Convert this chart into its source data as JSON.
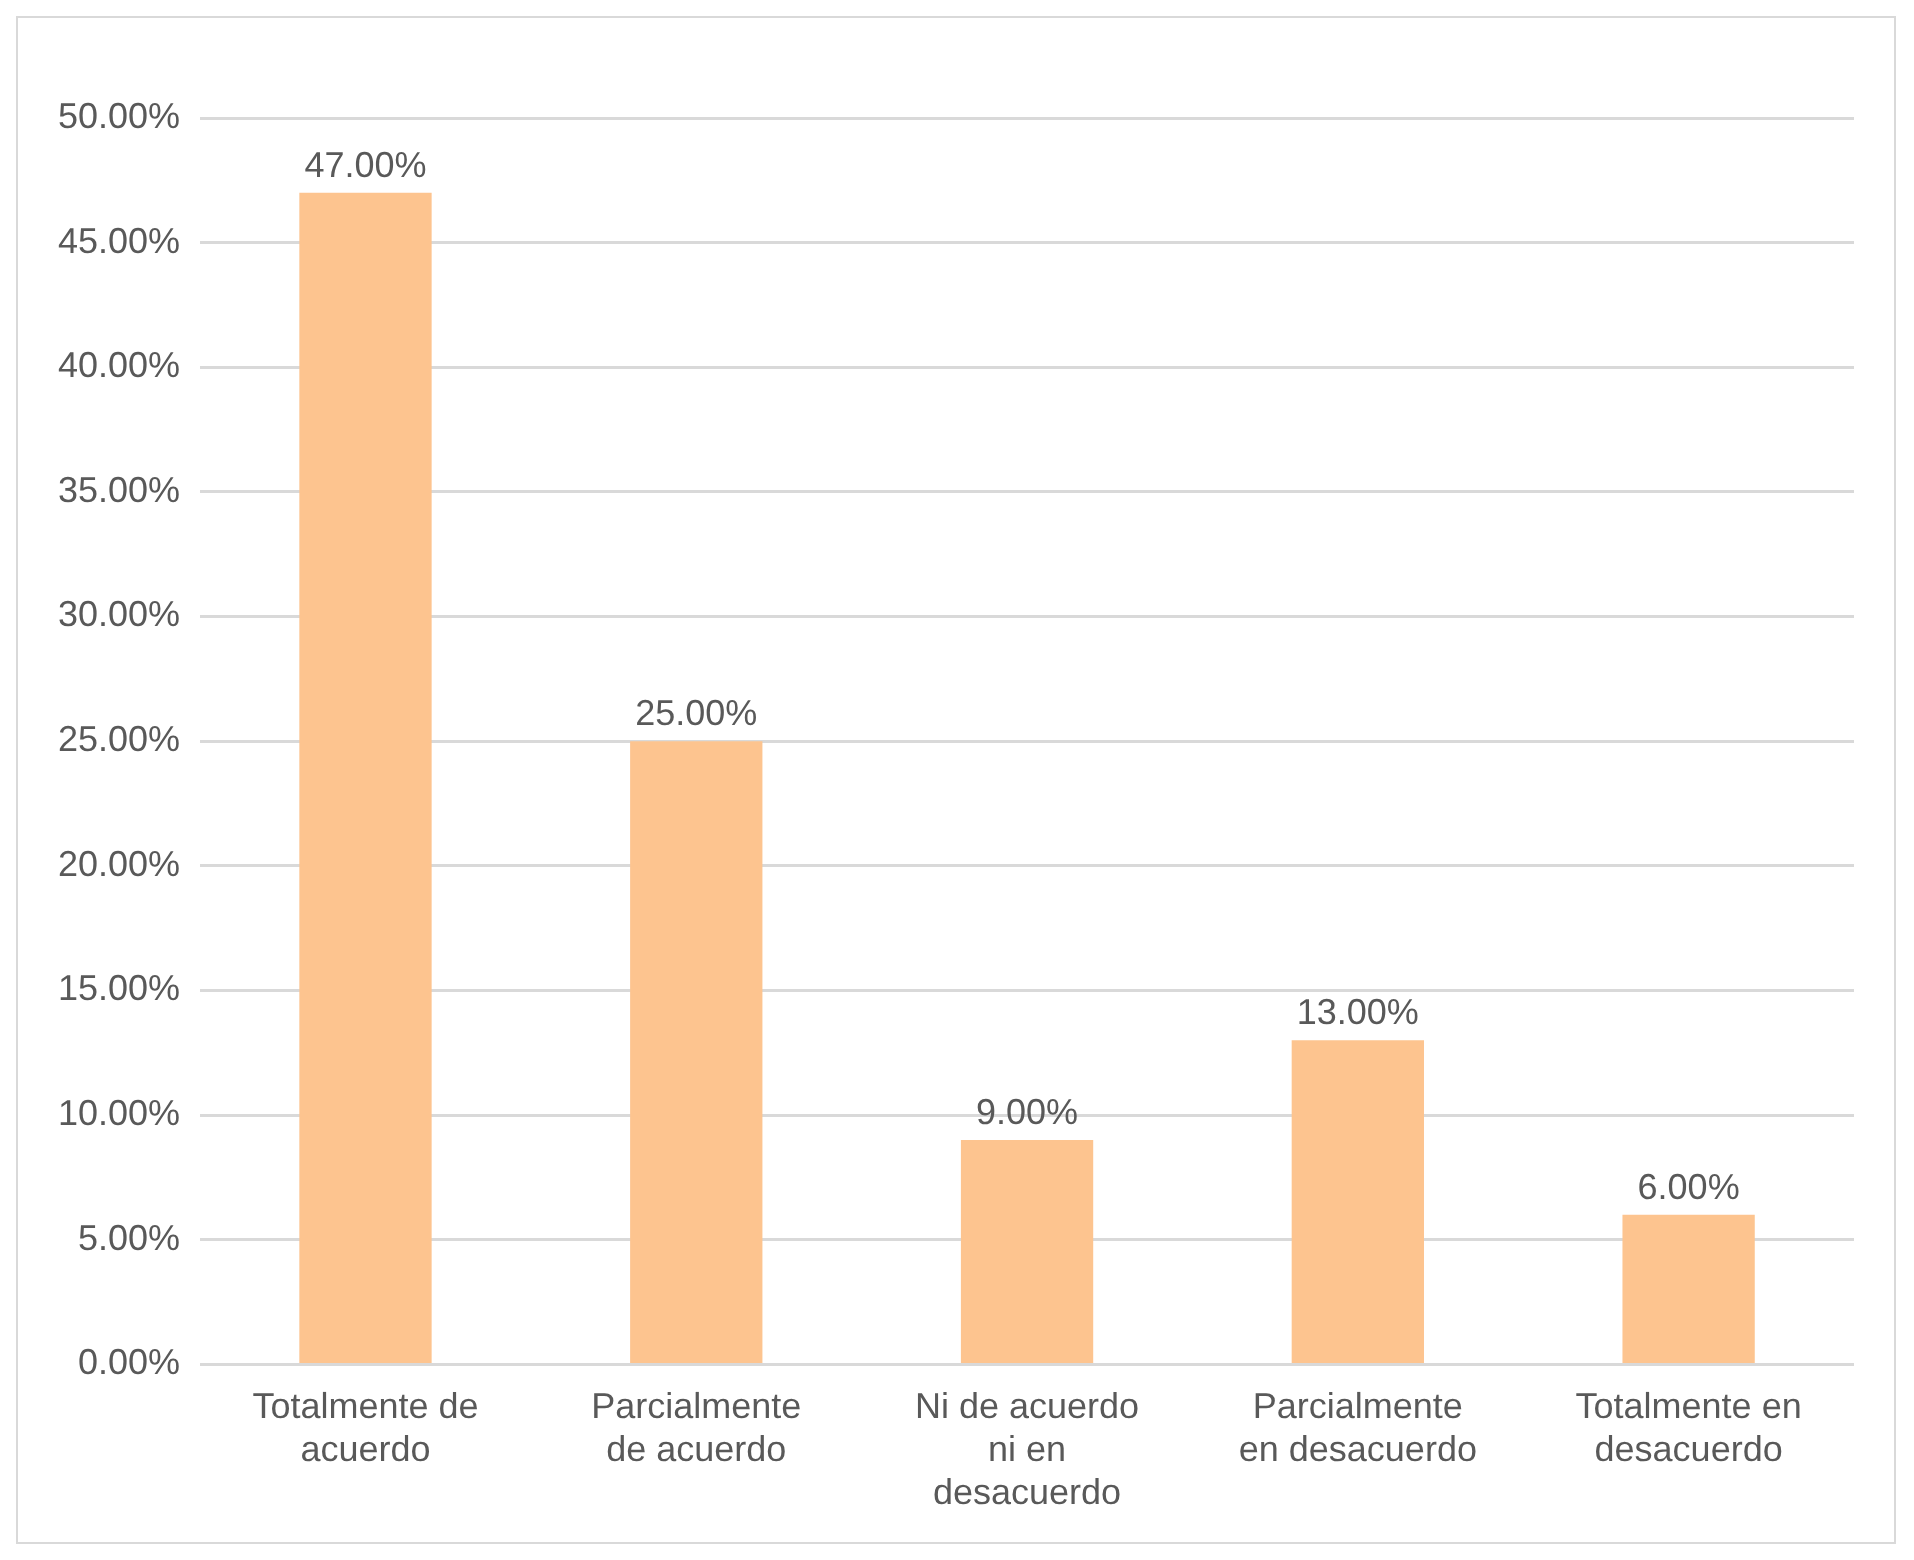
{
  "chart_data": {
    "type": "bar",
    "categories": [
      "Totalmente de acuerdo",
      "Parcialmente de acuerdo",
      "Ni de acuerdo ni en desacuerdo",
      "Parcialmente en desacuerdo",
      "Totalmente en desacuerdo"
    ],
    "values": [
      47,
      25,
      9,
      13,
      6
    ],
    "value_labels": [
      "47.00%",
      "25.00%",
      "9.00%",
      "13.00%",
      "6.00%"
    ],
    "color": "#fdc48f",
    "ylim": [
      0,
      50
    ],
    "yticks": [
      {
        "value": 0,
        "label": "0.00%"
      },
      {
        "value": 5,
        "label": "5.00%"
      },
      {
        "value": 10,
        "label": "10.00%"
      },
      {
        "value": 15,
        "label": "15.00%"
      },
      {
        "value": 20,
        "label": "20.00%"
      },
      {
        "value": 25,
        "label": "25.00%"
      },
      {
        "value": 30,
        "label": "30.00%"
      },
      {
        "value": 35,
        "label": "35.00%"
      },
      {
        "value": 40,
        "label": "40.00%"
      },
      {
        "value": 45,
        "label": "45.00%"
      },
      {
        "value": 50,
        "label": "50.00%"
      }
    ],
    "grid": "y",
    "legend": false
  }
}
